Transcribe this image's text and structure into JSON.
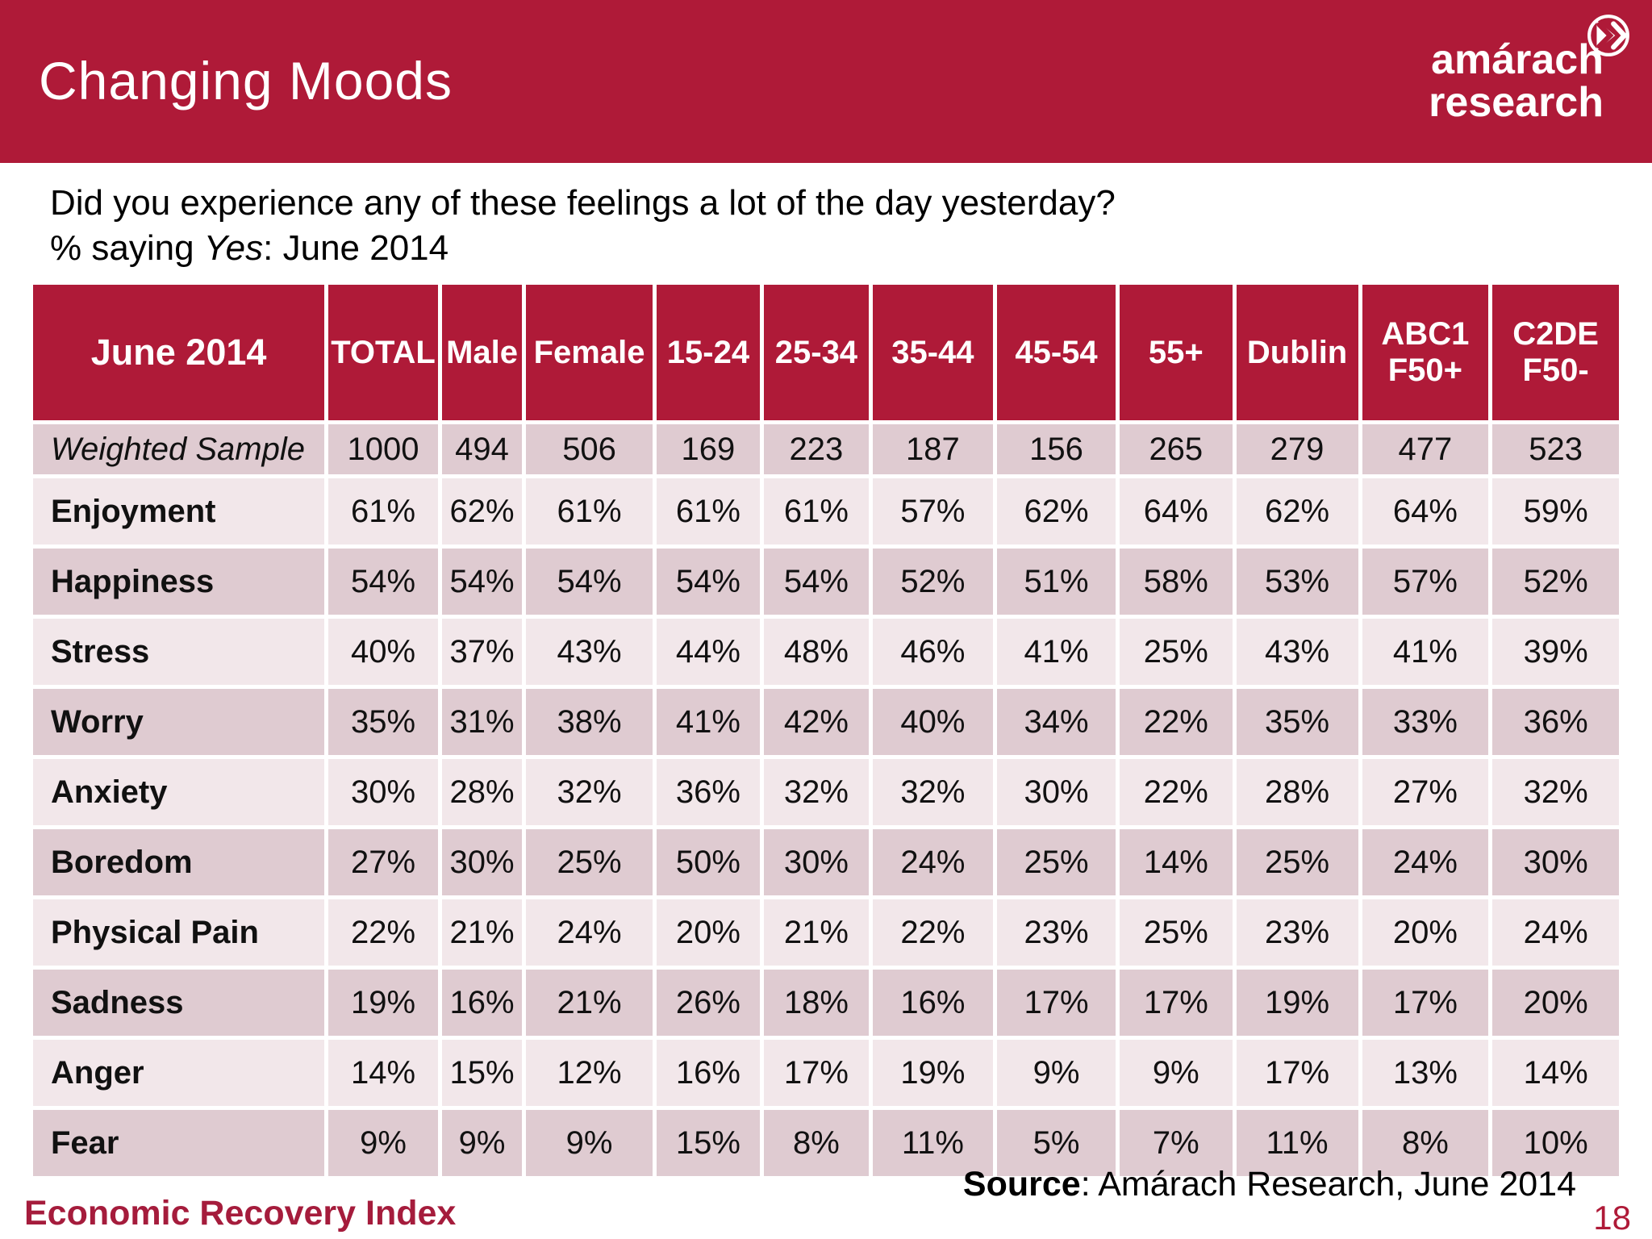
{
  "slide": {
    "title": "Changing Moods",
    "logo": {
      "line1": "amárach",
      "line2": "research",
      "icon": "double-chevron-circle-icon"
    },
    "question_line1": "Did you experience any of these feelings a lot of the day yesterday?",
    "subtitle_prefix": "% saying ",
    "subtitle_italic": "Yes",
    "subtitle_suffix": ": June 2014",
    "footer_left": "Economic Recovery Index",
    "source_bold": "Source",
    "source_text": ": Amárach Research, June 2014",
    "page_number": "18"
  },
  "colors": {
    "banner": "#AF1A38",
    "header_cell": "#AF1A38",
    "row_dark": "#DFCBD1",
    "row_light": "#F2E7EA",
    "footer_accent": "#A51C3C"
  },
  "chart_data": {
    "type": "table",
    "title": "Changing Moods",
    "question": "Did you experience any of these feelings a lot of the day yesterday?",
    "subtitle": "% saying Yes: June 2014",
    "columns": [
      "June 2014",
      "TOTAL",
      "Male",
      "Female",
      "15-24",
      "25-34",
      "35-44",
      "45-54",
      "55+",
      "Dublin",
      "ABC1 F50+",
      "C2DE F50-"
    ],
    "rows": [
      {
        "label": "Weighted Sample",
        "emphasis": "italic",
        "values": [
          "1000",
          "494",
          "506",
          "169",
          "223",
          "187",
          "156",
          "265",
          "279",
          "477",
          "523"
        ]
      },
      {
        "label": "Enjoyment",
        "values": [
          "61%",
          "62%",
          "61%",
          "61%",
          "61%",
          "57%",
          "62%",
          "64%",
          "62%",
          "64%",
          "59%"
        ]
      },
      {
        "label": "Happiness",
        "values": [
          "54%",
          "54%",
          "54%",
          "54%",
          "54%",
          "52%",
          "51%",
          "58%",
          "53%",
          "57%",
          "52%"
        ]
      },
      {
        "label": "Stress",
        "values": [
          "40%",
          "37%",
          "43%",
          "44%",
          "48%",
          "46%",
          "41%",
          "25%",
          "43%",
          "41%",
          "39%"
        ]
      },
      {
        "label": "Worry",
        "values": [
          "35%",
          "31%",
          "38%",
          "41%",
          "42%",
          "40%",
          "34%",
          "22%",
          "35%",
          "33%",
          "36%"
        ]
      },
      {
        "label": "Anxiety",
        "values": [
          "30%",
          "28%",
          "32%",
          "36%",
          "32%",
          "32%",
          "30%",
          "22%",
          "28%",
          "27%",
          "32%"
        ]
      },
      {
        "label": "Boredom",
        "values": [
          "27%",
          "30%",
          "25%",
          "50%",
          "30%",
          "24%",
          "25%",
          "14%",
          "25%",
          "24%",
          "30%"
        ]
      },
      {
        "label": "Physical Pain",
        "values": [
          "22%",
          "21%",
          "24%",
          "20%",
          "21%",
          "22%",
          "23%",
          "25%",
          "23%",
          "20%",
          "24%"
        ]
      },
      {
        "label": "Sadness",
        "values": [
          "19%",
          "16%",
          "21%",
          "26%",
          "18%",
          "16%",
          "17%",
          "17%",
          "19%",
          "17%",
          "20%"
        ]
      },
      {
        "label": "Anger",
        "values": [
          "14%",
          "15%",
          "12%",
          "16%",
          "17%",
          "19%",
          "9%",
          "9%",
          "17%",
          "13%",
          "14%"
        ]
      },
      {
        "label": "Fear",
        "values": [
          "9%",
          "9%",
          "9%",
          "15%",
          "8%",
          "11%",
          "5%",
          "7%",
          "11%",
          "8%",
          "10%"
        ]
      }
    ]
  }
}
